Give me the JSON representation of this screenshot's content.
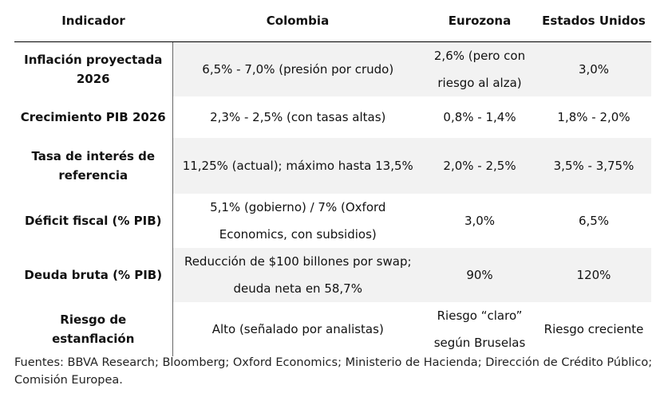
{
  "table": {
    "header": [
      "Indicador",
      "Colombia",
      "Eurozona",
      "Estados Unidos"
    ],
    "rows": [
      [
        "Inflación proyectada 2026",
        "6,5% - 7,0% (presión por crudo)",
        "2,6% (pero con riesgo al alza)",
        "3,0%"
      ],
      [
        "Crecimiento PIB 2026",
        "2,3% - 2,5% (con tasas altas)",
        "0,8% - 1,4%",
        "1,8% - 2,0%"
      ],
      [
        "Tasa de interés de referencia",
        "11,25% (actual); máximo hasta 13,5%",
        "2,0% - 2,5%",
        "3,5% - 3,75%"
      ],
      [
        "Déficit fiscal (% PIB)",
        "5,1% (gobierno) / 7% (Oxford Economics, con subsidios)",
        "3,0%",
        "6,5%"
      ],
      [
        "Deuda bruta (% PIB)",
        "Reducción de $100 billones por swap; deuda neta en 58,7%",
        "90%",
        "120%"
      ],
      [
        "Riesgo de estanflación",
        "Alto (señalado por analistas)",
        "Riesgo “claro” según Bruselas",
        "Riesgo creciente"
      ]
    ]
  },
  "footer": "Fuentes: BBVA Research; Bloomberg; Oxford Economics; Ministerio de Hacienda; Dirección de Crédito Público; Comisión Europea."
}
